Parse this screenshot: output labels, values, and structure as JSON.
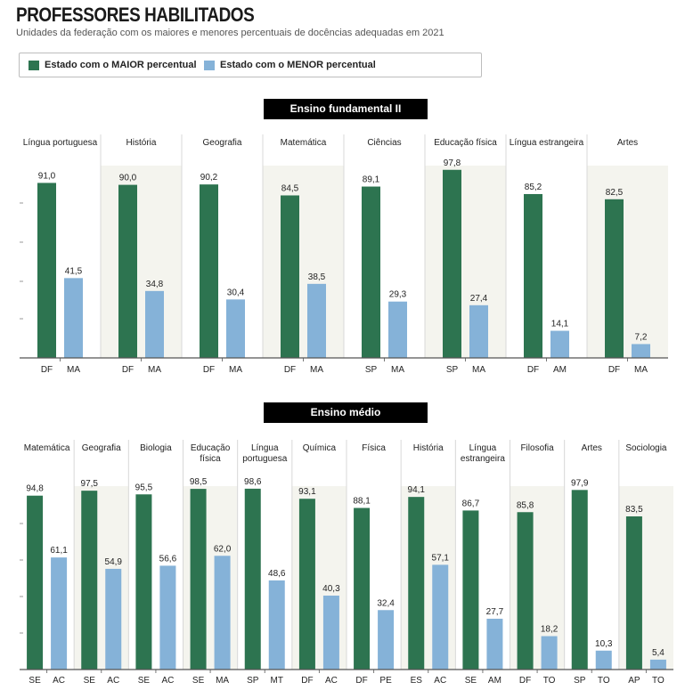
{
  "title": "PROFESSORES HABILITADOS",
  "subtitle": "Unidades da federação com os maiores e menores percentuais de docências adequadas em 2021",
  "legend": [
    {
      "label": "Estado com o MAIOR percentual",
      "color": "#2d7450"
    },
    {
      "label": "Estado com o MENOR percentual",
      "color": "#85b2d8"
    }
  ],
  "colors": {
    "max": "#2d7450",
    "min": "#85b2d8",
    "panel_shade": "#f4f4ee"
  },
  "chart_data": [
    {
      "type": "bar",
      "title": "Ensino fundamental II",
      "ylim": [
        0,
        100
      ],
      "panels": [
        {
          "category": [
            "Língua portuguesa"
          ],
          "max_state": "DF",
          "max_value": 91.0,
          "max_label": "91,0",
          "min_state": "MA",
          "min_value": 41.5,
          "min_label": "41,5"
        },
        {
          "category": [
            "História"
          ],
          "max_state": "DF",
          "max_value": 90.0,
          "max_label": "90,0",
          "min_state": "MA",
          "min_value": 34.8,
          "min_label": "34,8"
        },
        {
          "category": [
            "Geografia"
          ],
          "max_state": "DF",
          "max_value": 90.2,
          "max_label": "90,2",
          "min_state": "MA",
          "min_value": 30.4,
          "min_label": "30,4"
        },
        {
          "category": [
            "Matemática"
          ],
          "max_state": "DF",
          "max_value": 84.5,
          "max_label": "84,5",
          "min_state": "MA",
          "min_value": 38.5,
          "min_label": "38,5"
        },
        {
          "category": [
            "Ciências"
          ],
          "max_state": "SP",
          "max_value": 89.1,
          "max_label": "89,1",
          "min_state": "MA",
          "min_value": 29.3,
          "min_label": "29,3"
        },
        {
          "category": [
            "Educação física"
          ],
          "max_state": "SP",
          "max_value": 97.8,
          "max_label": "97,8",
          "min_state": "MA",
          "min_value": 27.4,
          "min_label": "27,4"
        },
        {
          "category": [
            "Língua estrangeira"
          ],
          "max_state": "DF",
          "max_value": 85.2,
          "max_label": "85,2",
          "min_state": "AM",
          "min_value": 14.1,
          "min_label": "14,1"
        },
        {
          "category": [
            "Artes"
          ],
          "max_state": "DF",
          "max_value": 82.5,
          "max_label": "82,5",
          "min_state": "MA",
          "min_value": 7.2,
          "min_label": "7,2"
        }
      ]
    },
    {
      "type": "bar",
      "title": "Ensino médio",
      "ylim": [
        0,
        100
      ],
      "panels": [
        {
          "category": [
            "Matemática"
          ],
          "max_state": "SE",
          "max_value": 94.8,
          "max_label": "94,8",
          "min_state": "AC",
          "min_value": 61.1,
          "min_label": "61,1"
        },
        {
          "category": [
            "Geografia"
          ],
          "max_state": "SE",
          "max_value": 97.5,
          "max_label": "97,5",
          "min_state": "AC",
          "min_value": 54.9,
          "min_label": "54,9"
        },
        {
          "category": [
            "Biologia"
          ],
          "max_state": "SE",
          "max_value": 95.5,
          "max_label": "95,5",
          "min_state": "AC",
          "min_value": 56.6,
          "min_label": "56,6"
        },
        {
          "category": [
            "Educação",
            "física"
          ],
          "max_state": "SE",
          "max_value": 98.5,
          "max_label": "98,5",
          "min_state": "MA",
          "min_value": 62.0,
          "min_label": "62,0"
        },
        {
          "category": [
            "Língua",
            "portuguesa"
          ],
          "max_state": "SP",
          "max_value": 98.6,
          "max_label": "98,6",
          "min_state": "MT",
          "min_value": 48.6,
          "min_label": "48,6"
        },
        {
          "category": [
            "Química"
          ],
          "max_state": "DF",
          "max_value": 93.1,
          "max_label": "93,1",
          "min_state": "AC",
          "min_value": 40.3,
          "min_label": "40,3"
        },
        {
          "category": [
            "Física"
          ],
          "max_state": "DF",
          "max_value": 88.1,
          "max_label": "88,1",
          "min_state": "PE",
          "min_value": 32.4,
          "min_label": "32,4"
        },
        {
          "category": [
            "História"
          ],
          "max_state": "ES",
          "max_value": 94.1,
          "max_label": "94,1",
          "min_state": "AC",
          "min_value": 57.1,
          "min_label": "57,1"
        },
        {
          "category": [
            "Língua",
            "estrangeira"
          ],
          "max_state": "SE",
          "max_value": 86.7,
          "max_label": "86,7",
          "min_state": "AM",
          "min_value": 27.7,
          "min_label": "27,7"
        },
        {
          "category": [
            "Filosofia"
          ],
          "max_state": "DF",
          "max_value": 85.8,
          "max_label": "85,8",
          "min_state": "TO",
          "min_value": 18.2,
          "min_label": "18,2"
        },
        {
          "category": [
            "Artes"
          ],
          "max_state": "SP",
          "max_value": 97.9,
          "max_label": "97,9",
          "min_state": "TO",
          "min_value": 10.3,
          "min_label": "10,3"
        },
        {
          "category": [
            "Sociologia"
          ],
          "max_state": "AP",
          "max_value": 83.5,
          "max_label": "83,5",
          "min_state": "TO",
          "min_value": 5.4,
          "min_label": "5,4"
        }
      ]
    }
  ]
}
